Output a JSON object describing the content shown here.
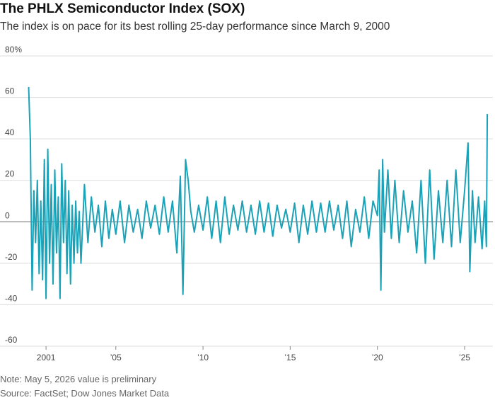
{
  "title": "The PHLX Semiconductor Index (SOX)",
  "subtitle": "The index is on pace for its best rolling 25-day performance since March 9, 2000",
  "note": "Note: May 5, 2026 value is preliminary",
  "source": "Source: FactSet; Dow Jones Market Data",
  "colors": {
    "line": "#1aa3b8",
    "grid": "#dddddd",
    "zero": "#888888"
  },
  "chart_data": {
    "type": "line",
    "title": "The PHLX Semiconductor Index (SOX)",
    "xlabel": "",
    "ylabel": "",
    "y_unit": "%",
    "ylim": [
      -60,
      80
    ],
    "xlim": [
      1999.9,
      2026.5
    ],
    "y_ticks": [
      {
        "value": 80,
        "label": "80%"
      },
      {
        "value": 60,
        "label": "60"
      },
      {
        "value": 40,
        "label": "40"
      },
      {
        "value": 20,
        "label": "20"
      },
      {
        "value": 0,
        "label": "0"
      },
      {
        "value": -20,
        "label": "-20"
      },
      {
        "value": -40,
        "label": "-40"
      },
      {
        "value": -60,
        "label": "-60"
      }
    ],
    "x_ticks": [
      {
        "value": 2001,
        "label": "2001"
      },
      {
        "value": 2005,
        "label": "’05"
      },
      {
        "value": 2010,
        "label": "’10"
      },
      {
        "value": 2015,
        "label": "’15"
      },
      {
        "value": 2020,
        "label": "’20"
      },
      {
        "value": 2025,
        "label": "’25"
      }
    ],
    "grid": true,
    "series": [
      {
        "x": [
          2000.0,
          2000.1,
          2000.2,
          2000.3,
          2000.4,
          2000.5,
          2000.6,
          2000.7,
          2000.8,
          2000.9,
          2001.0,
          2001.1,
          2001.2,
          2001.3,
          2001.4,
          2001.5,
          2001.6,
          2001.7,
          2001.8,
          2001.9,
          2002.0,
          2002.1,
          2002.2,
          2002.3,
          2002.4,
          2002.5,
          2002.6,
          2002.7,
          2002.8,
          2002.9,
          2003.0,
          2003.2,
          2003.4,
          2003.6,
          2003.8,
          2004.0,
          2004.2,
          2004.4,
          2004.6,
          2004.8,
          2005.0,
          2005.25,
          2005.5,
          2005.75,
          2006.0,
          2006.25,
          2006.5,
          2006.75,
          2007.0,
          2007.25,
          2007.5,
          2007.75,
          2008.0,
          2008.25,
          2008.5,
          2008.7,
          2008.85,
          2009.0,
          2009.15,
          2009.3,
          2009.5,
          2009.75,
          2010.0,
          2010.25,
          2010.5,
          2010.75,
          2011.0,
          2011.25,
          2011.5,
          2011.75,
          2012.0,
          2012.25,
          2012.5,
          2012.75,
          2013.0,
          2013.25,
          2013.5,
          2013.75,
          2014.0,
          2014.25,
          2014.5,
          2014.75,
          2015.0,
          2015.25,
          2015.5,
          2015.75,
          2016.0,
          2016.25,
          2016.5,
          2016.75,
          2017.0,
          2017.25,
          2017.5,
          2017.75,
          2018.0,
          2018.25,
          2018.5,
          2018.75,
          2019.0,
          2019.25,
          2019.5,
          2019.75,
          2020.0,
          2020.1,
          2020.2,
          2020.3,
          2020.4,
          2020.6,
          2020.8,
          2021.0,
          2021.25,
          2021.5,
          2021.75,
          2022.0,
          2022.25,
          2022.5,
          2022.75,
          2023.0,
          2023.25,
          2023.5,
          2023.75,
          2024.0,
          2024.25,
          2024.5,
          2024.75,
          2025.0,
          2025.2,
          2025.3,
          2025.45,
          2025.6,
          2025.8,
          2026.0,
          2026.15,
          2026.25,
          2026.3
        ],
        "y": [
          65,
          40,
          -33,
          15,
          -10,
          20,
          -25,
          10,
          -28,
          30,
          -37,
          35,
          -20,
          18,
          -30,
          25,
          -15,
          12,
          -37,
          28,
          -10,
          20,
          -25,
          15,
          -30,
          8,
          -20,
          10,
          -15,
          5,
          -20,
          18,
          -10,
          12,
          -5,
          8,
          -12,
          10,
          -8,
          6,
          -6,
          10,
          -10,
          8,
          -5,
          6,
          -8,
          10,
          -3,
          8,
          -6,
          12,
          -5,
          10,
          -15,
          22,
          -35,
          30,
          20,
          5,
          -5,
          8,
          -4,
          12,
          -8,
          10,
          -10,
          12,
          -6,
          8,
          -4,
          10,
          -5,
          8,
          -6,
          10,
          -5,
          9,
          -7,
          8,
          -3,
          6,
          -5,
          9,
          -10,
          8,
          -6,
          10,
          -5,
          9,
          -5,
          10,
          -4,
          8,
          -8,
          10,
          -12,
          6,
          -5,
          12,
          -8,
          10,
          3,
          25,
          -33,
          30,
          -5,
          25,
          -8,
          20,
          -10,
          15,
          -5,
          10,
          -15,
          20,
          -20,
          25,
          -18,
          15,
          -10,
          20,
          -12,
          25,
          -10,
          15,
          38,
          -24,
          15,
          -10,
          12,
          -13,
          10,
          -12,
          52
        ]
      }
    ]
  }
}
